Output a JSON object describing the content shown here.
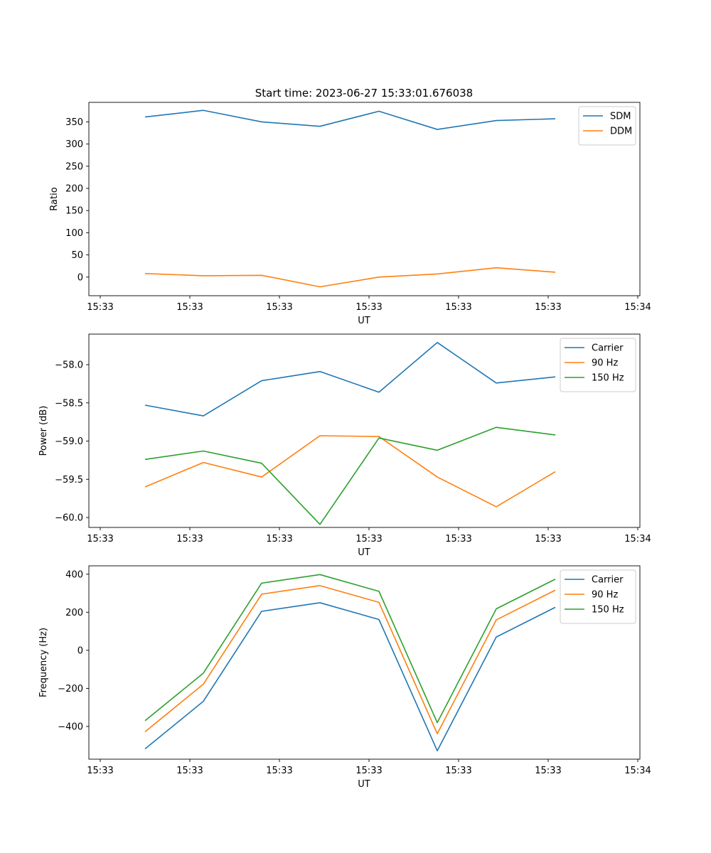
{
  "figure_title": "Start time: 2023-06-27 15:33:01.676038",
  "colors": {
    "blue": "#1f77b4",
    "orange": "#ff7f0e",
    "green": "#2ca02c"
  },
  "chart_data": [
    {
      "type": "line",
      "title": "Start time: 2023-06-27 15:33:01.676038",
      "xlabel": "UT",
      "ylabel": "Ratio",
      "xticklabels": [
        "15:33",
        "15:33",
        "15:33",
        "15:33",
        "15:33",
        "15:33",
        "15:34"
      ],
      "ylim": [
        -42,
        394
      ],
      "yticks": [
        0,
        50,
        100,
        150,
        200,
        250,
        300,
        350
      ],
      "grid": false,
      "legend": "top-right",
      "series": [
        {
          "name": "SDM",
          "color": "#1f77b4",
          "values": [
            361,
            376,
            350,
            340,
            374,
            333,
            353,
            357
          ]
        },
        {
          "name": "DDM",
          "color": "#ff7f0e",
          "values": [
            8,
            3,
            4,
            -22,
            0,
            7,
            21,
            11
          ]
        }
      ]
    },
    {
      "type": "line",
      "xlabel": "UT",
      "ylabel": "Power (dB)",
      "xticklabels": [
        "15:33",
        "15:33",
        "15:33",
        "15:33",
        "15:33",
        "15:33",
        "15:34"
      ],
      "ylim": [
        -60.13,
        -57.6
      ],
      "yticks": [
        -60.0,
        -59.5,
        -59.0,
        -58.5,
        -58.0
      ],
      "yticklabels": [
        "−60.0",
        "−59.5",
        "−59.0",
        "−58.5",
        "−58.0"
      ],
      "grid": false,
      "legend": "top-right",
      "series": [
        {
          "name": "Carrier",
          "color": "#1f77b4",
          "values": [
            -58.53,
            -58.67,
            -58.21,
            -58.09,
            -58.36,
            -57.71,
            -58.24,
            -58.16
          ]
        },
        {
          "name": "90 Hz",
          "color": "#ff7f0e",
          "values": [
            -59.6,
            -59.28,
            -59.47,
            -58.93,
            -58.94,
            -59.47,
            -59.86,
            -59.4
          ]
        },
        {
          "name": "150 Hz",
          "color": "#2ca02c",
          "values": [
            -59.24,
            -59.13,
            -59.29,
            -60.09,
            -58.96,
            -59.12,
            -58.82,
            -58.92
          ]
        }
      ]
    },
    {
      "type": "line",
      "xlabel": "UT",
      "ylabel": "Frequency (Hz)",
      "xticklabels": [
        "15:33",
        "15:33",
        "15:33",
        "15:33",
        "15:33",
        "15:33",
        "15:34"
      ],
      "ylim": [
        -572,
        444
      ],
      "yticks": [
        -400,
        -200,
        0,
        200,
        400
      ],
      "yticklabels": [
        "−400",
        "−200",
        "0",
        "200",
        "400"
      ],
      "grid": false,
      "legend": "top-right",
      "series": [
        {
          "name": "Carrier",
          "color": "#1f77b4",
          "values": [
            -518,
            -268,
            205,
            250,
            162,
            -528,
            70,
            226
          ]
        },
        {
          "name": "90 Hz",
          "color": "#ff7f0e",
          "values": [
            -428,
            -178,
            295,
            340,
            252,
            -438,
            160,
            316
          ]
        },
        {
          "name": "150 Hz",
          "color": "#2ca02c",
          "values": [
            -370,
            -120,
            353,
            398,
            310,
            -380,
            218,
            374
          ]
        }
      ]
    }
  ]
}
